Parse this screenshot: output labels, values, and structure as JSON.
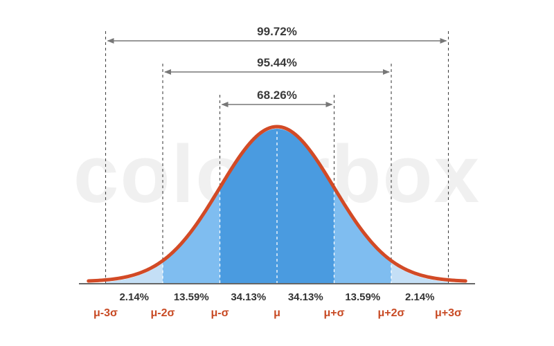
{
  "chart_data": {
    "type": "area",
    "curve": "normal distribution",
    "x_ticks": [
      "μ-3σ",
      "μ-2σ",
      "μ-σ",
      "μ",
      "μ+σ",
      "μ+2σ",
      "μ+3σ"
    ],
    "segments": [
      {
        "from": -3,
        "to": -2,
        "label": "2.14%",
        "value": 2.14
      },
      {
        "from": -2,
        "to": -1,
        "label": "13.59%",
        "value": 13.59
      },
      {
        "from": -1,
        "to": 0,
        "label": "34.13%",
        "value": 34.13
      },
      {
        "from": 0,
        "to": 1,
        "label": "34.13%",
        "value": 34.13
      },
      {
        "from": 1,
        "to": 2,
        "label": "13.59%",
        "value": 13.59
      },
      {
        "from": 2,
        "to": 3,
        "label": "2.14%",
        "value": 2.14
      }
    ],
    "ranges": [
      {
        "k": 1,
        "label": "68.26%",
        "value": 68.26
      },
      {
        "k": 2,
        "label": "95.44%",
        "value": 95.44
      },
      {
        "k": 3,
        "label": "99.72%",
        "value": 99.72
      }
    ],
    "xlim": [
      -3.3,
      3.3
    ],
    "grid": false
  },
  "watermark": "colourbox",
  "colors": {
    "curve": "#d24a26",
    "inner_fill": "#4a9be0",
    "outer_fill": "#7fbdf0",
    "tail_fill": "#c4dff6",
    "axis": "#666666",
    "guide": "#444444",
    "tick_text": "#c84a24",
    "range_arrow": "#777777"
  }
}
